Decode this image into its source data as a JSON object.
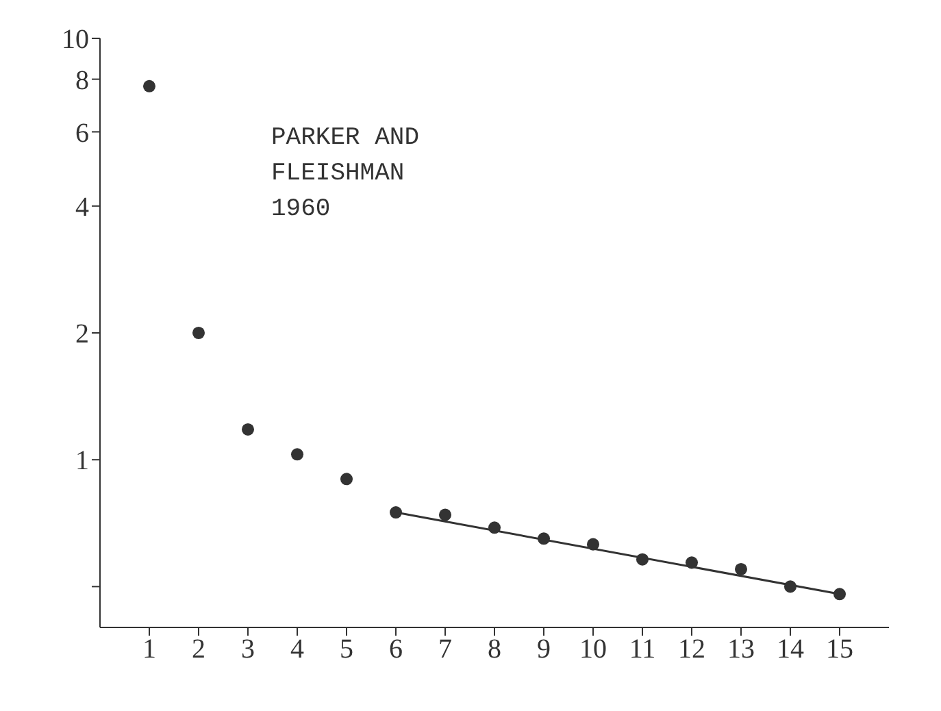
{
  "chart_data": {
    "type": "scatter",
    "annotations": [
      "PARKER AND\nFLEISHMAN\n1960"
    ],
    "x": [
      1,
      2,
      3,
      4,
      5,
      6,
      7,
      8,
      9,
      10,
      11,
      12,
      13,
      14,
      15
    ],
    "series": [
      {
        "color": "#333333",
        "marker": "circle",
        "values": [
          7.7,
          2,
          1.18,
          1.03,
          0.9,
          0.75,
          0.74,
          0.69,
          0.65,
          0.63,
          0.58,
          0.57,
          0.55,
          0.5,
          0.48
        ]
      },
      {
        "type": "line",
        "color": "#333333",
        "x": [
          6,
          15
        ],
        "values": [
          0.75,
          0.48
        ]
      }
    ],
    "xlim": [
      0,
      16
    ],
    "xticks": [
      1,
      2,
      3,
      4,
      5,
      6,
      7,
      8,
      9,
      10,
      11,
      12,
      13,
      14,
      15
    ],
    "ylim": [
      0.4,
      10
    ],
    "yticks": [
      {
        "value": 0.5,
        "label": null
      },
      1,
      2,
      4,
      6,
      8,
      10
    ],
    "log": "y",
    "grid": false,
    "line_style": "solid"
  }
}
